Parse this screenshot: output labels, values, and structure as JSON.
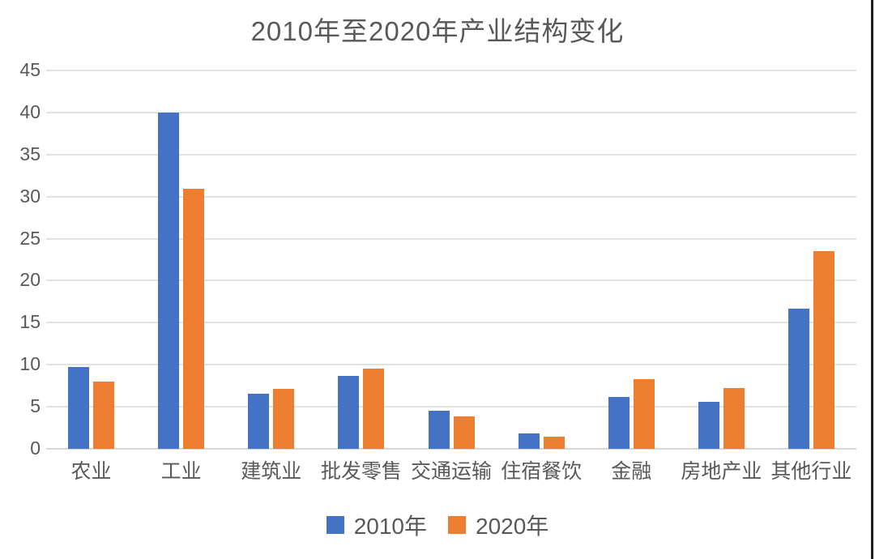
{
  "chart_data": {
    "type": "bar",
    "title": "2010年至2020年产业结构变化",
    "categories": [
      "农业",
      "工业",
      "建筑业",
      "批发零售",
      "交通运输",
      "住宿餐饮",
      "金融",
      "房地产业",
      "其他行业"
    ],
    "series": [
      {
        "name": "2010年",
        "color": "#4472C4",
        "values": [
          9.7,
          40.0,
          6.6,
          8.7,
          4.5,
          1.8,
          6.2,
          5.6,
          16.7
        ]
      },
      {
        "name": "2020年",
        "color": "#ED7D31",
        "values": [
          8.0,
          30.9,
          7.1,
          9.5,
          3.9,
          1.4,
          8.3,
          7.2,
          23.5
        ]
      }
    ],
    "ylim": [
      0,
      45
    ],
    "y_ticks": [
      0,
      5,
      10,
      15,
      20,
      25,
      30,
      35,
      40,
      45
    ],
    "xlabel": "",
    "ylabel": "",
    "grid": true,
    "legend_position": "bottom",
    "colors": {
      "text": "#595959",
      "gridline": "#e2e2e2",
      "series_2010": "#4472C4",
      "series_2020": "#ED7D31"
    }
  }
}
